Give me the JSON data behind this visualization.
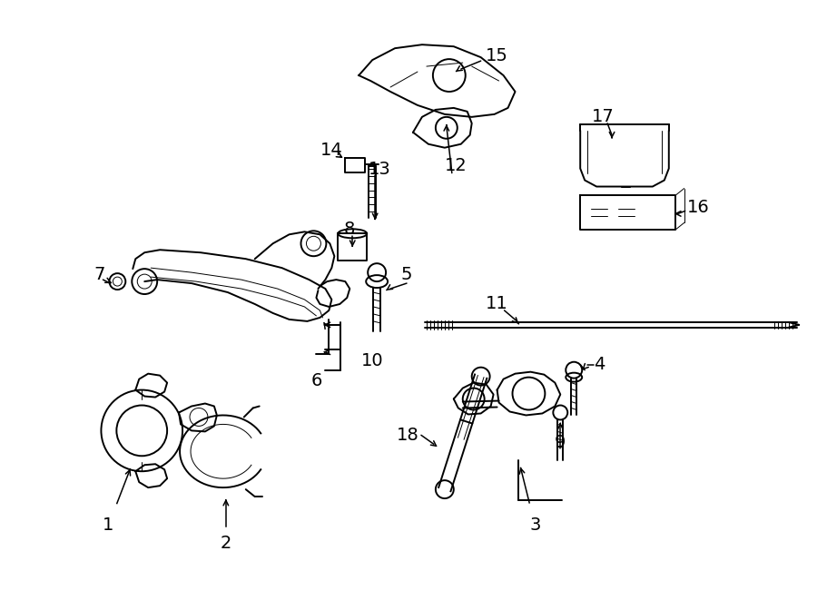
{
  "bg_color": "#ffffff",
  "line_color": "#000000",
  "fig_width": 9.0,
  "fig_height": 6.61,
  "fontsize_labels": 14,
  "lw": 1.4,
  "lw_thin": 0.7,
  "lw_thick": 2.2
}
